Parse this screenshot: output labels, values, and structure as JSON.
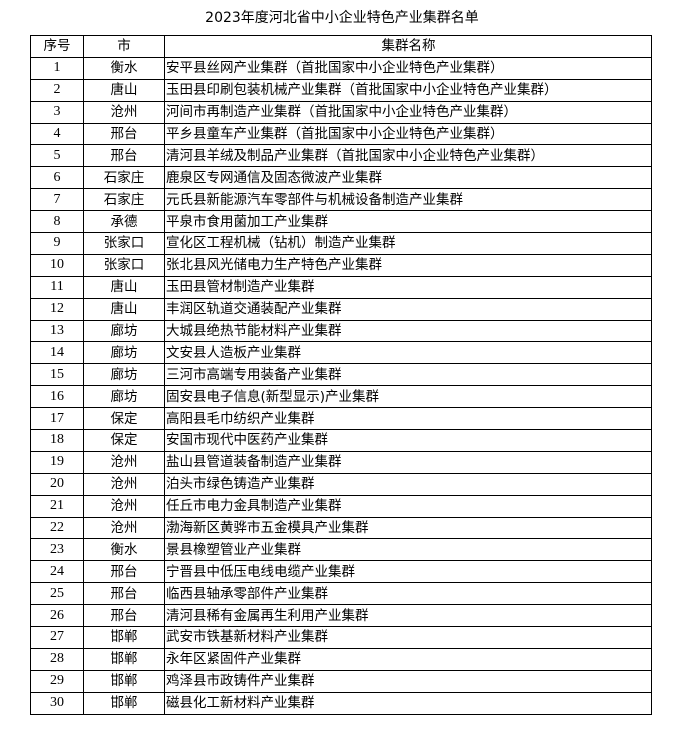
{
  "title": "2023年度河北省中小企业特色产业集群名单",
  "headers": {
    "no": "序号",
    "city": "市",
    "name": "集群名称"
  },
  "rows": [
    {
      "no": "1",
      "city": "衡水",
      "name": "安平县丝网产业集群（首批国家中小企业特色产业集群）"
    },
    {
      "no": "2",
      "city": "唐山",
      "name": "玉田县印刷包装机械产业集群（首批国家中小企业特色产业集群）"
    },
    {
      "no": "3",
      "city": "沧州",
      "name": "河间市再制造产业集群（首批国家中小企业特色产业集群）"
    },
    {
      "no": "4",
      "city": "邢台",
      "name": "平乡县童车产业集群（首批国家中小企业特色产业集群）"
    },
    {
      "no": "5",
      "city": "邢台",
      "name": "清河县羊绒及制品产业集群（首批国家中小企业特色产业集群）"
    },
    {
      "no": "6",
      "city": "石家庄",
      "name": "鹿泉区专网通信及固态微波产业集群"
    },
    {
      "no": "7",
      "city": "石家庄",
      "name": "元氏县新能源汽车零部件与机械设备制造产业集群"
    },
    {
      "no": "8",
      "city": "承德",
      "name": "平泉市食用菌加工产业集群"
    },
    {
      "no": "9",
      "city": "张家口",
      "name": "宣化区工程机械（钻机）制造产业集群"
    },
    {
      "no": "10",
      "city": "张家口",
      "name": "张北县风光储电力生产特色产业集群"
    },
    {
      "no": "11",
      "city": "唐山",
      "name": "玉田县管材制造产业集群"
    },
    {
      "no": "12",
      "city": "唐山",
      "name": "丰润区轨道交通装配产业集群"
    },
    {
      "no": "13",
      "city": "廊坊",
      "name": "大城县绝热节能材料产业集群"
    },
    {
      "no": "14",
      "city": "廊坊",
      "name": "文安县人造板产业集群"
    },
    {
      "no": "15",
      "city": "廊坊",
      "name": "三河市高端专用装备产业集群"
    },
    {
      "no": "16",
      "city": "廊坊",
      "name": "固安县电子信息(新型显示)产业集群"
    },
    {
      "no": "17",
      "city": "保定",
      "name": "高阳县毛巾纺织产业集群"
    },
    {
      "no": "18",
      "city": "保定",
      "name": "安国市现代中医药产业集群"
    },
    {
      "no": "19",
      "city": "沧州",
      "name": "盐山县管道装备制造产业集群"
    },
    {
      "no": "20",
      "city": "沧州",
      "name": "泊头市绿色铸造产业集群"
    },
    {
      "no": "21",
      "city": "沧州",
      "name": "任丘市电力金具制造产业集群"
    },
    {
      "no": "22",
      "city": "沧州",
      "name": "渤海新区黄骅市五金模具产业集群"
    },
    {
      "no": "23",
      "city": "衡水",
      "name": "景县橡塑管业产业集群"
    },
    {
      "no": "24",
      "city": "邢台",
      "name": "宁晋县中低压电线电缆产业集群"
    },
    {
      "no": "25",
      "city": "邢台",
      "name": "临西县轴承零部件产业集群"
    },
    {
      "no": "26",
      "city": "邢台",
      "name": "清河县稀有金属再生利用产业集群"
    },
    {
      "no": "27",
      "city": "邯郸",
      "name": "武安市铁基新材料产业集群"
    },
    {
      "no": "28",
      "city": "邯郸",
      "name": "永年区紧固件产业集群"
    },
    {
      "no": "29",
      "city": "邯郸",
      "name": "鸡泽县市政铸件产业集群"
    },
    {
      "no": "30",
      "city": "邯郸",
      "name": "磁县化工新材料产业集群"
    }
  ]
}
